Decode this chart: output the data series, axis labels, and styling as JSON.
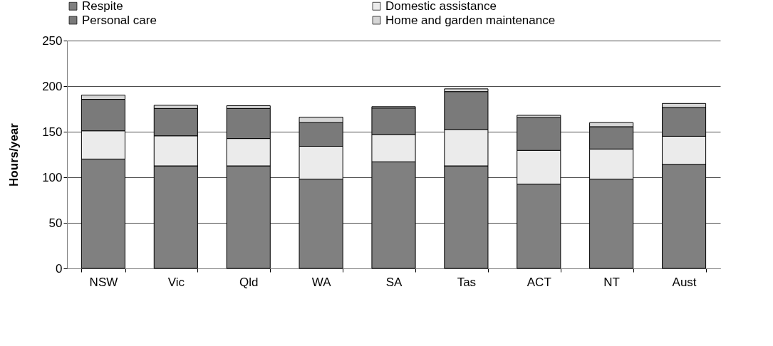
{
  "chart_data": {
    "type": "bar",
    "stacked": true,
    "ylabel": "Hours/year",
    "categories": [
      "NSW",
      "Vic",
      "Qld",
      "WA",
      "SA",
      "Tas",
      "ACT",
      "NT",
      "Aust"
    ],
    "series": [
      {
        "name": "Respite",
        "color": "#808080",
        "values": [
          120,
          112.5,
          112.5,
          98,
          117,
          112.5,
          92.5,
          98,
          114
        ]
      },
      {
        "name": "Domestic assistance",
        "color": "#ebebeb",
        "values": [
          31,
          33,
          30,
          36,
          30,
          40,
          37,
          33,
          31
        ]
      },
      {
        "name": "Personal care",
        "color": "#7a7a7a",
        "values": [
          34.5,
          30,
          33,
          26,
          29,
          41.5,
          36,
          24.5,
          31.5
        ]
      },
      {
        "name": "Home and garden maintenance",
        "color": "#d6d6d6",
        "values": [
          4.7,
          3.5,
          3,
          6,
          1.5,
          3,
          2.5,
          4.5,
          4.5
        ]
      }
    ],
    "ylim": [
      0,
      250
    ],
    "yticks": [
      0,
      50,
      100,
      150,
      200,
      250
    ],
    "grid": "y",
    "legend": "top"
  }
}
